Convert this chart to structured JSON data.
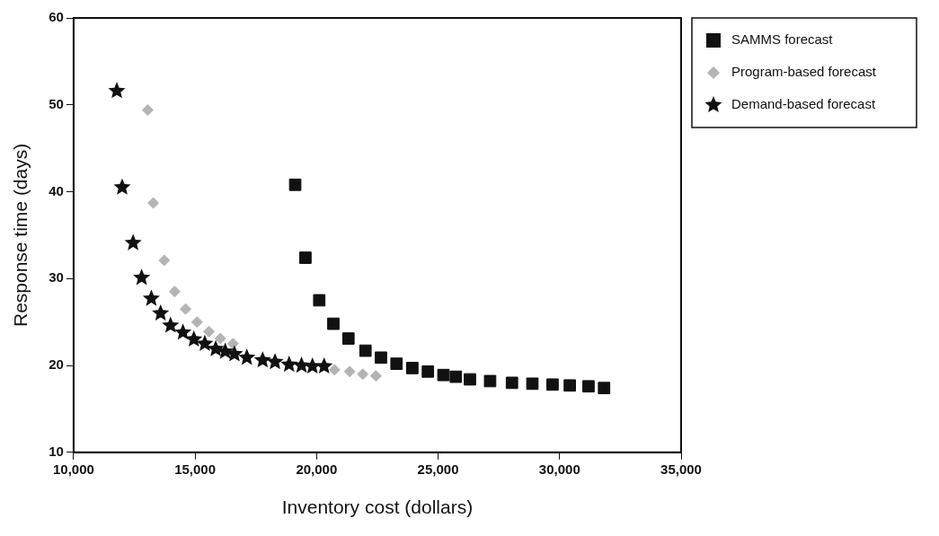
{
  "chart_data": {
    "type": "scatter",
    "xlabel": "Inventory cost (dollars)",
    "ylabel": "Response time (days)",
    "xlim": [
      10000,
      35000
    ],
    "xticks": [
      {
        "value": 10000,
        "label": "10,000"
      },
      {
        "value": 15000,
        "label": "15,000"
      },
      {
        "value": 20000,
        "label": "20,000"
      },
      {
        "value": 25000,
        "label": "25,000"
      },
      {
        "value": 30000,
        "label": "30,000"
      },
      {
        "value": 35000,
        "label": "35,000"
      }
    ],
    "ylim": [
      10,
      60
    ],
    "yticks": [
      10,
      20,
      30,
      40,
      50,
      60
    ],
    "grid": false,
    "legend": "top right",
    "series": [
      {
        "name": "SAMMS forecast",
        "color": "#111111",
        "marker": "square",
        "x": [
          19120,
          19540,
          20110,
          20690,
          21310,
          22010,
          22650,
          23290,
          23940,
          24580,
          25220,
          25730,
          26310,
          27140,
          28040,
          28880,
          29710,
          30420,
          31190,
          31830
        ],
        "values": [
          40.8,
          32.4,
          27.5,
          24.8,
          23.1,
          21.7,
          20.9,
          20.2,
          19.7,
          19.3,
          18.9,
          18.7,
          18.4,
          18.2,
          18.0,
          17.9,
          17.8,
          17.7,
          17.6,
          17.4
        ]
      },
      {
        "name": "Program-based forecast",
        "color": "#b4b4b4",
        "marker": "diamond",
        "x": [
          13050,
          13280,
          13730,
          14160,
          14610,
          15080,
          15570,
          16040,
          16560,
          20740,
          21360,
          21900,
          22440
        ],
        "values": [
          49.4,
          38.7,
          32.1,
          28.5,
          26.5,
          25.0,
          23.9,
          23.1,
          22.5,
          19.5,
          19.3,
          19.0,
          18.8
        ]
      },
      {
        "name": "Demand-based forecast",
        "color": "#111111",
        "marker": "star",
        "x": [
          11780,
          12000,
          12450,
          12800,
          13200,
          13580,
          13990,
          14500,
          14950,
          15400,
          15850,
          16240,
          16620,
          17130,
          17780,
          18290,
          18870,
          19380,
          19830,
          20310
        ],
        "values": [
          51.6,
          40.5,
          34.1,
          30.1,
          27.7,
          26.0,
          24.6,
          23.8,
          23.0,
          22.5,
          21.9,
          21.6,
          21.3,
          20.9,
          20.6,
          20.4,
          20.1,
          20.0,
          19.9,
          19.9
        ]
      }
    ]
  }
}
